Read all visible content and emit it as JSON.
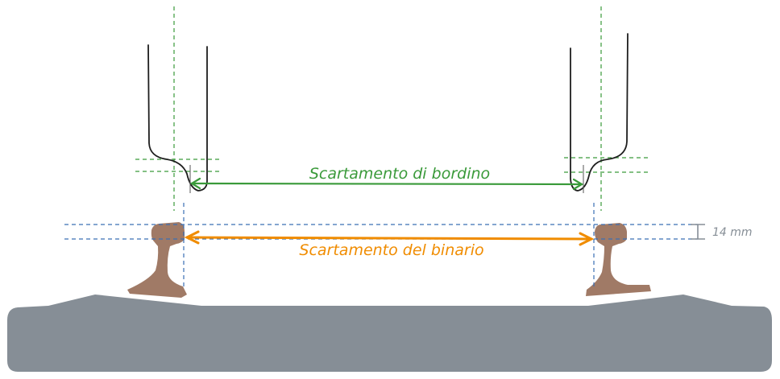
{
  "labels": {
    "flange_gauge": "Scartamento di bordino",
    "track_gauge": "Scartamento del binario",
    "head_depth": "14 mm"
  },
  "colors": {
    "flange_gauge": "#3a9a3a",
    "track_gauge": "#f08c00",
    "guide_green": "#3a9a3a",
    "guide_blue": "#3a6fb5",
    "rail": "#a07a66",
    "ballast": "#868e96",
    "wheel": "#1e1e1e",
    "dimension": "#868e96"
  }
}
